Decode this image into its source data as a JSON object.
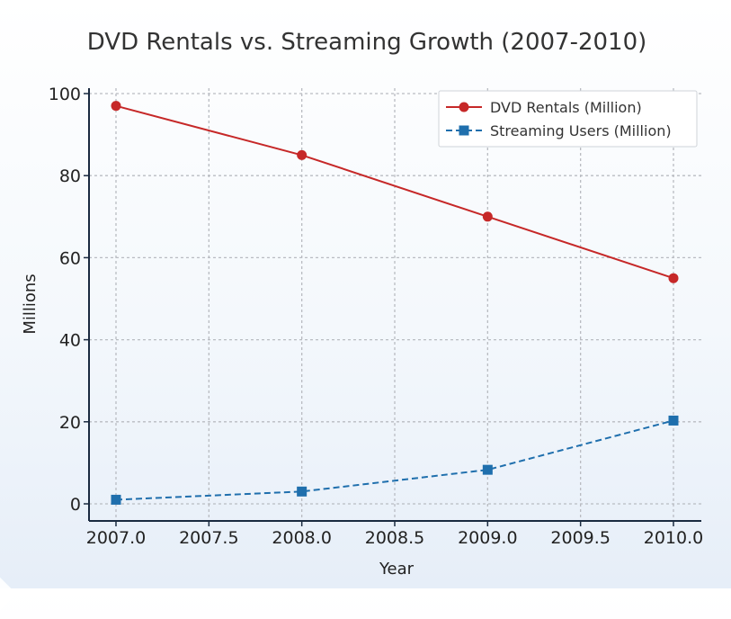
{
  "chart_data": {
    "type": "line",
    "title": "DVD Rentals vs. Streaming Growth (2007-2010)",
    "xlabel": "Year",
    "ylabel": "Millions",
    "xlim": [
      2007.0,
      2010.0
    ],
    "ylim": [
      0,
      100
    ],
    "xticks": [
      "2007.0",
      "2007.5",
      "2008.0",
      "2008.5",
      "2009.0",
      "2009.5",
      "2010.0"
    ],
    "xtick_values": [
      2007.0,
      2007.5,
      2008.0,
      2008.5,
      2009.0,
      2009.5,
      2010.0
    ],
    "yticks": [
      "0",
      "20",
      "40",
      "60",
      "80",
      "100"
    ],
    "ytick_values": [
      0,
      20,
      40,
      60,
      80,
      100
    ],
    "grid": true,
    "legend_position": "top-right",
    "x": [
      2007,
      2008,
      2009,
      2010
    ],
    "series": [
      {
        "name": "DVD Rentals (Million)",
        "values": [
          97,
          85,
          70,
          55
        ],
        "color": "#c62828",
        "style": "solid",
        "marker": "circle"
      },
      {
        "name": "Streaming Users (Million)",
        "values": [
          1,
          3,
          8.3,
          20.3
        ],
        "color": "#1f6fad",
        "style": "dashed",
        "marker": "square"
      }
    ]
  }
}
